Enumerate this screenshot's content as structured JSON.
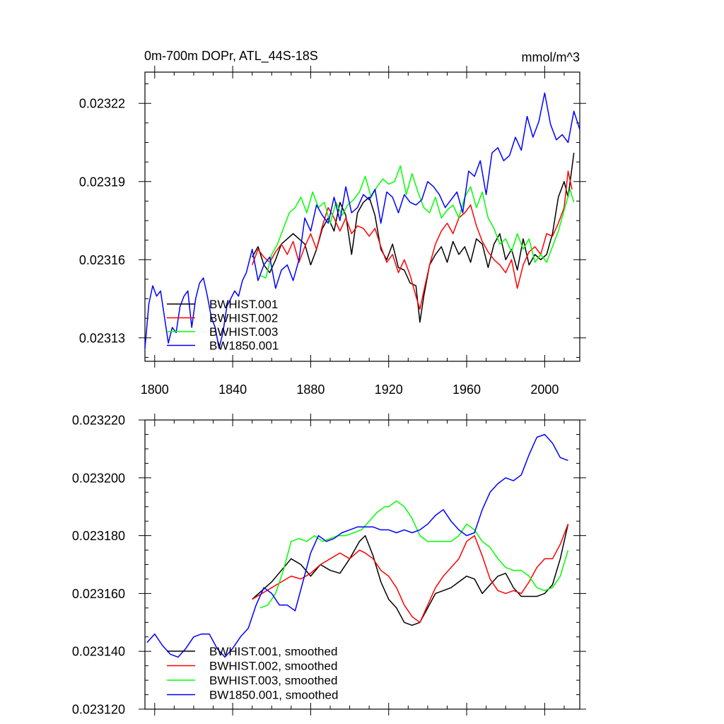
{
  "title_left": "0m-700m DOPr, ATL_44S-18S",
  "title_right": "mmol/m^3",
  "chart_data": [
    {
      "type": "line",
      "title": "0m-700m DOPr, ATL_44S-18S",
      "units": "mmol/m^3",
      "xlim": [
        1795,
        2018
      ],
      "ylim": [
        0.023121,
        0.023232
      ],
      "x_ticks": [
        1800,
        1840,
        1880,
        1920,
        1960,
        2000
      ],
      "x_tick_labels": [
        "1800",
        "1840",
        "1880",
        "1920",
        "1960",
        "2000"
      ],
      "y_ticks": [
        0.02313,
        0.02316,
        0.02319,
        0.02322
      ],
      "y_tick_labels": [
        "0.02313",
        "0.02316",
        "0.02319",
        "0.02322"
      ],
      "legend_position": "bottom-left",
      "series": [
        {
          "name": "BWHIST.001",
          "color": "#000000",
          "x": [
            1850,
            1853,
            1856,
            1859,
            1862,
            1865,
            1868,
            1871,
            1874,
            1877,
            1880,
            1883,
            1886,
            1889,
            1892,
            1895,
            1898,
            1901,
            1904,
            1907,
            1910,
            1913,
            1916,
            1919,
            1922,
            1925,
            1928,
            1931,
            1934,
            1936,
            1938,
            1941,
            1944,
            1947,
            1950,
            1953,
            1956,
            1959,
            1962,
            1965,
            1968,
            1971,
            1974,
            1977,
            1980,
            1983,
            1986,
            1989,
            1992,
            1995,
            1998,
            2001,
            2004,
            2007,
            2010,
            2012,
            2015
          ],
          "y": [
            0.023161,
            0.023165,
            0.023158,
            0.023155,
            0.02316,
            0.023166,
            0.023168,
            0.02317,
            0.023168,
            0.023166,
            0.023158,
            0.023164,
            0.023172,
            0.023176,
            0.023171,
            0.023182,
            0.023177,
            0.023162,
            0.023178,
            0.023182,
            0.023184,
            0.023177,
            0.023164,
            0.02316,
            0.023166,
            0.023157,
            0.023156,
            0.023151,
            0.02315,
            0.023136,
            0.023146,
            0.023158,
            0.023162,
            0.023165,
            0.023159,
            0.023167,
            0.023162,
            0.023165,
            0.023159,
            0.023168,
            0.023166,
            0.023157,
            0.023166,
            0.02317,
            0.02316,
            0.023164,
            0.023156,
            0.023168,
            0.023158,
            0.023162,
            0.02316,
            0.023162,
            0.02317,
            0.023184,
            0.02319,
            0.023184,
            0.023201
          ]
        },
        {
          "name": "BWHIST.002",
          "color": "#ff0000",
          "x": [
            1850,
            1853,
            1856,
            1859,
            1862,
            1865,
            1868,
            1871,
            1874,
            1877,
            1880,
            1883,
            1886,
            1889,
            1892,
            1895,
            1898,
            1901,
            1904,
            1907,
            1910,
            1913,
            1916,
            1919,
            1922,
            1925,
            1928,
            1931,
            1934,
            1936,
            1938,
            1941,
            1944,
            1947,
            1950,
            1953,
            1956,
            1959,
            1962,
            1965,
            1968,
            1971,
            1974,
            1977,
            1980,
            1983,
            1986,
            1989,
            1992,
            1995,
            1998,
            2001,
            2004,
            2007,
            2010,
            2012,
            2014
          ],
          "y": [
            0.023158,
            0.023164,
            0.023161,
            0.023159,
            0.023163,
            0.023166,
            0.023162,
            0.023167,
            0.023159,
            0.023165,
            0.02317,
            0.023164,
            0.023173,
            0.02318,
            0.023176,
            0.023171,
            0.023176,
            0.02317,
            0.023173,
            0.023172,
            0.023169,
            0.023172,
            0.023165,
            0.023159,
            0.023162,
            0.023155,
            0.02316,
            0.023154,
            0.023146,
            0.023141,
            0.023148,
            0.023158,
            0.023166,
            0.023171,
            0.023174,
            0.02317,
            0.023176,
            0.023178,
            0.023181,
            0.023173,
            0.023167,
            0.023163,
            0.02316,
            0.023158,
            0.023155,
            0.02316,
            0.023149,
            0.023158,
            0.023163,
            0.023165,
            0.023162,
            0.02317,
            0.023169,
            0.023174,
            0.02318,
            0.023194,
            0.023187
          ]
        },
        {
          "name": "BWHIST.003",
          "color": "#00ff00",
          "x": [
            1854,
            1857,
            1860,
            1863,
            1866,
            1869,
            1872,
            1875,
            1878,
            1881,
            1884,
            1887,
            1890,
            1893,
            1896,
            1899,
            1902,
            1905,
            1908,
            1911,
            1914,
            1917,
            1920,
            1923,
            1926,
            1929,
            1932,
            1935,
            1938,
            1941,
            1944,
            1947,
            1950,
            1953,
            1956,
            1959,
            1962,
            1965,
            1968,
            1971,
            1974,
            1977,
            1980,
            1983,
            1986,
            1989,
            1992,
            1995,
            1998,
            2001,
            2004,
            2007,
            2010,
            2013,
            2015
          ],
          "y": [
            0.023154,
            0.023153,
            0.023162,
            0.023166,
            0.023172,
            0.023178,
            0.02318,
            0.023184,
            0.023178,
            0.023186,
            0.02318,
            0.023182,
            0.023174,
            0.023182,
            0.023177,
            0.023181,
            0.023183,
            0.023186,
            0.023192,
            0.023184,
            0.023188,
            0.023191,
            0.023189,
            0.02319,
            0.023196,
            0.023185,
            0.023193,
            0.023186,
            0.02318,
            0.023178,
            0.023184,
            0.023176,
            0.023179,
            0.023181,
            0.023176,
            0.023184,
            0.023188,
            0.02318,
            0.023186,
            0.023176,
            0.023172,
            0.023166,
            0.023168,
            0.023163,
            0.02317,
            0.023164,
            0.023168,
            0.023159,
            0.023162,
            0.023159,
            0.023165,
            0.023171,
            0.023179,
            0.023187,
            0.023182
          ]
        },
        {
          "name": "BW1850.001",
          "color": "#0000ff",
          "x": [
            1795,
            1797,
            1799,
            1801,
            1803,
            1805,
            1807,
            1809,
            1811,
            1813,
            1815,
            1817,
            1819,
            1821,
            1823,
            1825,
            1827,
            1829,
            1831,
            1833,
            1835,
            1837,
            1839,
            1841,
            1843,
            1845,
            1847,
            1850,
            1853,
            1856,
            1859,
            1862,
            1865,
            1868,
            1871,
            1874,
            1877,
            1880,
            1883,
            1886,
            1889,
            1892,
            1895,
            1898,
            1901,
            1904,
            1907,
            1910,
            1913,
            1916,
            1919,
            1922,
            1925,
            1928,
            1931,
            1934,
            1937,
            1940,
            1943,
            1946,
            1949,
            1952,
            1955,
            1958,
            1961,
            1964,
            1967,
            1970,
            1973,
            1976,
            1979,
            1982,
            1985,
            1988,
            1991,
            1994,
            1997,
            2000,
            2003,
            2006,
            2009,
            2012,
            2015,
            2018
          ],
          "y": [
            0.023126,
            0.023143,
            0.02315,
            0.023146,
            0.023148,
            0.023138,
            0.023128,
            0.023134,
            0.023132,
            0.023142,
            0.023146,
            0.023148,
            0.023134,
            0.023145,
            0.023151,
            0.023153,
            0.023146,
            0.023138,
            0.023134,
            0.023126,
            0.023132,
            0.023142,
            0.023145,
            0.023148,
            0.023146,
            0.023152,
            0.023155,
            0.023164,
            0.023152,
            0.023158,
            0.023161,
            0.023149,
            0.023156,
            0.023158,
            0.023152,
            0.02316,
            0.023176,
            0.023171,
            0.023181,
            0.023177,
            0.023174,
            0.023184,
            0.023175,
            0.023188,
            0.023178,
            0.02318,
            0.023185,
            0.023183,
            0.023187,
            0.023174,
            0.023186,
            0.023184,
            0.023178,
            0.023185,
            0.023182,
            0.023181,
            0.023183,
            0.02319,
            0.023188,
            0.023185,
            0.02318,
            0.023183,
            0.023186,
            0.023178,
            0.023194,
            0.023192,
            0.023198,
            0.023185,
            0.023201,
            0.023203,
            0.023198,
            0.0232,
            0.023207,
            0.023202,
            0.023215,
            0.023207,
            0.023213,
            0.023224,
            0.023212,
            0.023206,
            0.023208,
            0.023205,
            0.023217,
            0.02321
          ]
        }
      ]
    },
    {
      "type": "line",
      "xlim": [
        1795,
        2018
      ],
      "ylim": [
        0.02312,
        0.02322
      ],
      "x_ticks": [
        1800,
        1840,
        1880,
        1920,
        1960,
        2000
      ],
      "y_ticks": [
        0.02312,
        0.02314,
        0.02316,
        0.02318,
        0.0232,
        0.02322
      ],
      "y_tick_labels": [
        "0.023120",
        "0.023140",
        "0.023160",
        "0.023180",
        "0.023200",
        "0.023220"
      ],
      "legend_position": "bottom-left",
      "series": [
        {
          "name": "BWHIST.001, smoothed",
          "color": "#000000",
          "x": [
            1850,
            1855,
            1860,
            1865,
            1870,
            1875,
            1880,
            1885,
            1890,
            1895,
            1900,
            1905,
            1908,
            1912,
            1916,
            1920,
            1924,
            1928,
            1932,
            1936,
            1940,
            1944,
            1948,
            1952,
            1956,
            1960,
            1964,
            1968,
            1972,
            1976,
            1980,
            1984,
            1988,
            1992,
            1996,
            2000,
            2004,
            2008,
            2012
          ],
          "y": [
            0.023158,
            0.023161,
            0.023164,
            0.023168,
            0.023172,
            0.02317,
            0.023166,
            0.02317,
            0.023168,
            0.023167,
            0.023172,
            0.023178,
            0.02318,
            0.023173,
            0.023164,
            0.023158,
            0.023155,
            0.02315,
            0.023149,
            0.02315,
            0.023155,
            0.02316,
            0.023161,
            0.023162,
            0.023164,
            0.023166,
            0.023165,
            0.02316,
            0.023163,
            0.023166,
            0.023167,
            0.023162,
            0.023159,
            0.023159,
            0.023159,
            0.02316,
            0.023163,
            0.023172,
            0.023184
          ]
        },
        {
          "name": "BWHIST.002, smoothed",
          "color": "#ff0000",
          "x": [
            1850,
            1855,
            1860,
            1865,
            1870,
            1875,
            1880,
            1885,
            1890,
            1895,
            1900,
            1905,
            1908,
            1912,
            1916,
            1920,
            1924,
            1928,
            1932,
            1936,
            1940,
            1944,
            1948,
            1952,
            1956,
            1960,
            1964,
            1968,
            1972,
            1976,
            1980,
            1984,
            1988,
            1992,
            1996,
            2000,
            2004,
            2008,
            2012
          ],
          "y": [
            0.023158,
            0.02316,
            0.023162,
            0.023164,
            0.023166,
            0.023165,
            0.023167,
            0.02317,
            0.023172,
            0.023174,
            0.023172,
            0.023175,
            0.023174,
            0.023172,
            0.023168,
            0.023166,
            0.023162,
            0.023156,
            0.023152,
            0.02315,
            0.023156,
            0.023162,
            0.023166,
            0.023169,
            0.023172,
            0.023178,
            0.02318,
            0.023173,
            0.023165,
            0.023161,
            0.02316,
            0.023161,
            0.02316,
            0.023164,
            0.023169,
            0.023172,
            0.023172,
            0.023177,
            0.023184
          ]
        },
        {
          "name": "BWHIST.003, smoothed",
          "color": "#00ff00",
          "x": [
            1854,
            1858,
            1862,
            1866,
            1870,
            1874,
            1878,
            1882,
            1886,
            1890,
            1894,
            1898,
            1902,
            1906,
            1910,
            1914,
            1918,
            1920,
            1924,
            1928,
            1932,
            1936,
            1940,
            1944,
            1948,
            1952,
            1956,
            1960,
            1964,
            1968,
            1972,
            1976,
            1980,
            1984,
            1988,
            1992,
            1996,
            2000,
            2004,
            2008,
            2012
          ],
          "y": [
            0.023155,
            0.023156,
            0.02316,
            0.023168,
            0.023178,
            0.023179,
            0.023178,
            0.02318,
            0.023178,
            0.023179,
            0.02318,
            0.02318,
            0.023181,
            0.023182,
            0.023185,
            0.023188,
            0.02319,
            0.02319,
            0.023192,
            0.02319,
            0.023186,
            0.02318,
            0.023178,
            0.023178,
            0.023178,
            0.023178,
            0.02318,
            0.023184,
            0.023182,
            0.023178,
            0.023176,
            0.023172,
            0.023169,
            0.023168,
            0.023168,
            0.023166,
            0.023162,
            0.023161,
            0.023162,
            0.023166,
            0.023175
          ]
        },
        {
          "name": "BW1850.001, smoothed",
          "color": "#0000ff",
          "x": [
            1796,
            1800,
            1804,
            1808,
            1812,
            1816,
            1820,
            1824,
            1828,
            1832,
            1836,
            1840,
            1844,
            1848,
            1852,
            1856,
            1860,
            1864,
            1868,
            1872,
            1876,
            1880,
            1884,
            1888,
            1892,
            1896,
            1900,
            1904,
            1908,
            1912,
            1916,
            1920,
            1924,
            1928,
            1932,
            1936,
            1940,
            1944,
            1948,
            1952,
            1956,
            1960,
            1964,
            1968,
            1972,
            1976,
            1980,
            1984,
            1988,
            1992,
            1996,
            2000,
            2004,
            2008,
            2012
          ],
          "y": [
            0.023143,
            0.023146,
            0.023142,
            0.023139,
            0.023138,
            0.023141,
            0.023145,
            0.023146,
            0.023146,
            0.023141,
            0.023138,
            0.023141,
            0.023145,
            0.023148,
            0.023156,
            0.023162,
            0.02316,
            0.023156,
            0.023156,
            0.023154,
            0.023164,
            0.023174,
            0.02318,
            0.023178,
            0.023179,
            0.023181,
            0.023182,
            0.023183,
            0.023183,
            0.023183,
            0.023182,
            0.023182,
            0.023181,
            0.023182,
            0.023181,
            0.023182,
            0.023184,
            0.023187,
            0.023189,
            0.023185,
            0.023182,
            0.02318,
            0.023181,
            0.023189,
            0.023195,
            0.023198,
            0.0232,
            0.023199,
            0.023201,
            0.023208,
            0.023214,
            0.023215,
            0.023212,
            0.023207,
            0.023206
          ]
        }
      ]
    }
  ]
}
